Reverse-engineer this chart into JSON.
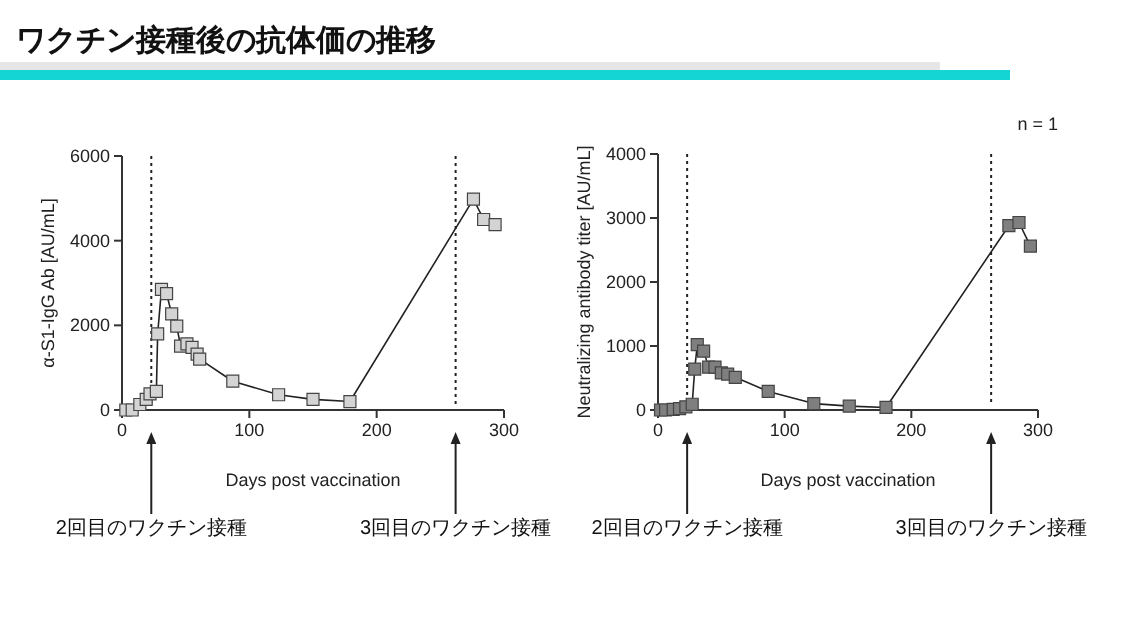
{
  "chart_data": [
    {
      "type": "line",
      "title": "ワクチン接種後の抗体価の推移",
      "xlabel": "Days post vaccination",
      "ylabel": "α-S1-IgG Ab [AU/mL]",
      "xlim": [
        0,
        300
      ],
      "xticks": [
        0,
        100,
        200,
        300
      ],
      "ylim": [
        0,
        6000
      ],
      "yticks": [
        0,
        2000,
        4000,
        6000
      ],
      "grid": false,
      "marker": "square",
      "line_style": "solid",
      "series": [
        {
          "color": "#d4d4d4",
          "x": [
            3,
            8,
            14,
            19,
            22,
            27,
            28,
            31,
            35,
            39,
            43,
            46,
            51,
            55,
            59,
            61,
            87,
            123,
            150,
            179,
            276,
            284,
            293
          ],
          "values": [
            0,
            0,
            130,
            250,
            380,
            440,
            1800,
            2850,
            2750,
            2270,
            1980,
            1510,
            1560,
            1480,
            1320,
            1200,
            680,
            360,
            250,
            200,
            4980,
            4500,
            4380
          ]
        }
      ],
      "ref_lines": [
        {
          "axis": "x",
          "value": 23,
          "label": "2回目のワクチン接種",
          "line_style": "dotted"
        },
        {
          "axis": "x",
          "value": 262,
          "label": "3回目のワクチン接種",
          "line_style": "dotted"
        }
      ]
    },
    {
      "type": "line",
      "xlabel": "Days post vaccination",
      "ylabel": "Neutralizing antibody titer [AU/mL]",
      "xlim": [
        0,
        300
      ],
      "xticks": [
        0,
        100,
        200,
        300
      ],
      "ylim": [
        0,
        4000
      ],
      "yticks": [
        0,
        1000,
        2000,
        3000,
        4000
      ],
      "grid": false,
      "marker": "square",
      "line_style": "solid",
      "annotations": [
        "n = 1"
      ],
      "series": [
        {
          "color": "#7f7f7f",
          "x": [
            2,
            6,
            12,
            17,
            22,
            27,
            29,
            31,
            36,
            40,
            45,
            50,
            55,
            61,
            87,
            123,
            151,
            180,
            277,
            285,
            294
          ],
          "values": [
            0,
            0,
            10,
            20,
            50,
            90,
            640,
            1020,
            920,
            670,
            670,
            580,
            560,
            510,
            290,
            100,
            60,
            40,
            2880,
            2930,
            2560
          ]
        }
      ],
      "ref_lines": [
        {
          "axis": "x",
          "value": 23,
          "label": "2回目のワクチン接種",
          "line_style": "dotted"
        },
        {
          "axis": "x",
          "value": 263,
          "label": "3回目のワクチン接種",
          "line_style": "dotted"
        }
      ]
    }
  ]
}
